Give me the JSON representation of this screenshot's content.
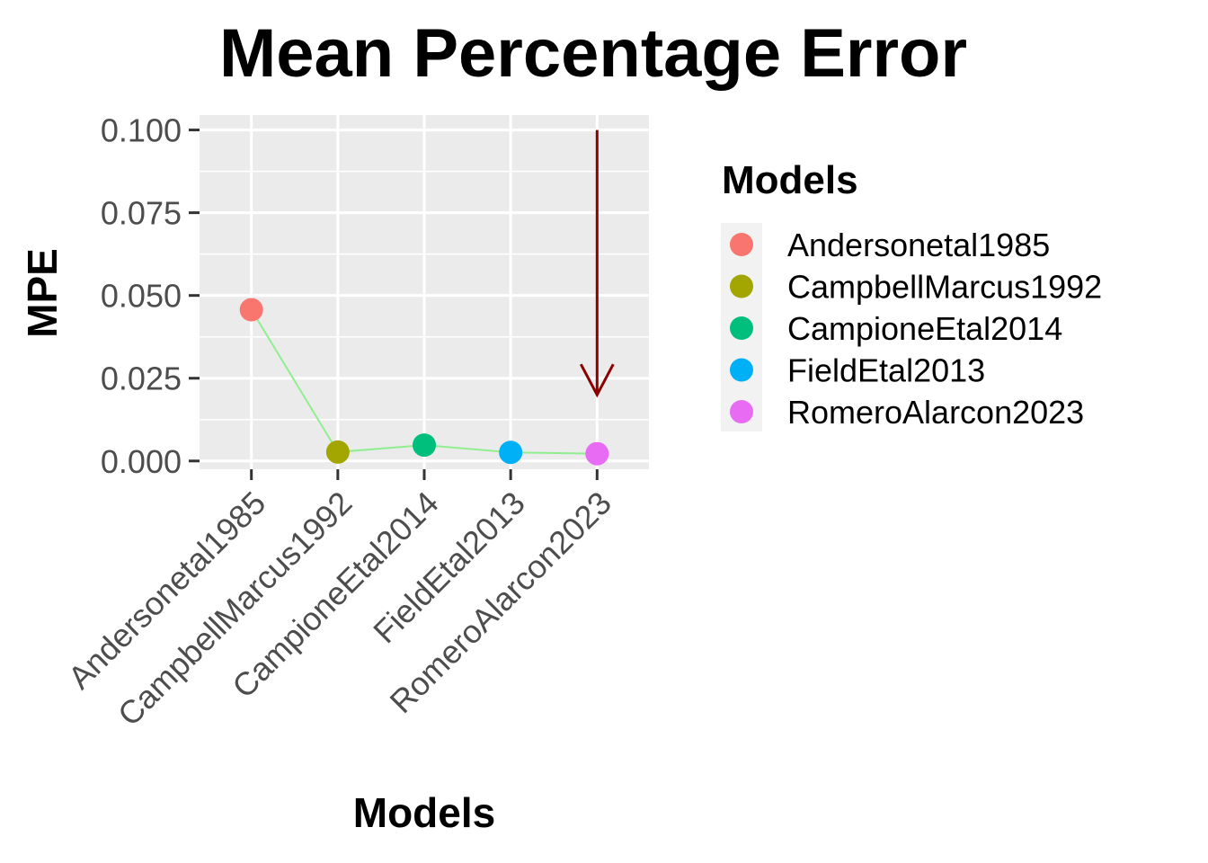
{
  "chart_data": {
    "type": "line",
    "title": "Mean Percentage Error",
    "xlabel": "Models",
    "ylabel": "MPE",
    "categories": [
      "Andersonetal1985",
      "CampbellMarcus1992",
      "CampioneEtal2014",
      "FieldEtal2013",
      "RomeroAlarcon2023"
    ],
    "values": [
      0.0457,
      0.0027,
      0.0048,
      0.0026,
      0.0022
    ],
    "colors": [
      "#F8766D",
      "#A3A500",
      "#00BF7D",
      "#00B0F6",
      "#E76BF3"
    ],
    "line_color": "#90EE90",
    "ylim": [
      -0.0025,
      0.1045
    ],
    "yticks": [
      0.0,
      0.025,
      0.05,
      0.075,
      0.1
    ],
    "ytick_labels": [
      "0.000",
      "0.025",
      "0.050",
      "0.075",
      "0.100"
    ],
    "grid": true,
    "panel_background": "#EBEBEB",
    "legend": {
      "title": "Models",
      "placement": "right",
      "entries": [
        "Andersonetal1985",
        "CampbellMarcus1992",
        "CampioneEtal2014",
        "FieldEtal2013",
        "RomeroAlarcon2023"
      ]
    },
    "annotation": {
      "type": "arrow",
      "category": "RomeroAlarcon2023",
      "y_start": 0.1,
      "y_end": 0.02,
      "color": "#8B0000"
    }
  }
}
